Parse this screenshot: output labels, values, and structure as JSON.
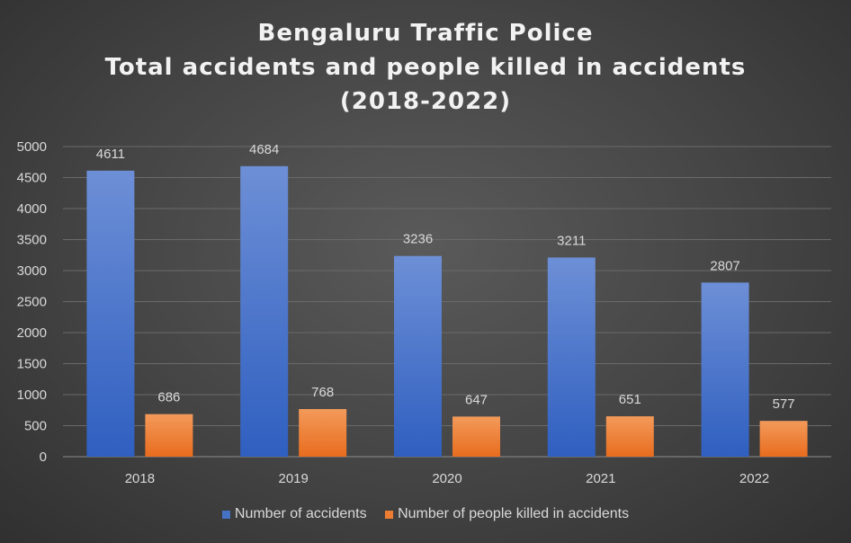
{
  "chart_data": {
    "type": "bar",
    "title": [
      "Bengaluru Traffic Police",
      "Total accidents and people killed in accidents",
      "(2018-2022)"
    ],
    "categories": [
      "2018",
      "2019",
      "2020",
      "2021",
      "2022"
    ],
    "series": [
      {
        "name": "Number of accidents",
        "values": [
          4611,
          4684,
          3236,
          3211,
          2807
        ],
        "color": "#4472c4"
      },
      {
        "name": "Number of people killed in accidents",
        "values": [
          686,
          768,
          647,
          651,
          577
        ],
        "color": "#ed7d31"
      }
    ],
    "ylim": [
      0,
      5000
    ],
    "yticks": [
      0,
      500,
      1000,
      1500,
      2000,
      2500,
      3000,
      3500,
      4000,
      4500,
      5000
    ],
    "grid": true,
    "legend_position": "bottom",
    "data_labels": true
  }
}
